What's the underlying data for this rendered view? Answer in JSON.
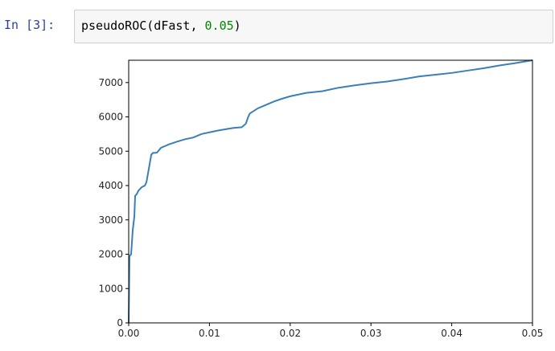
{
  "cell": {
    "prompt": "In [3]:",
    "code_func": "pseudoROC(dFast, ",
    "code_num": "0.05",
    "code_close": ")"
  },
  "chart_data": {
    "type": "line",
    "title": "",
    "xlabel": "",
    "ylabel": "",
    "xlim": [
      0,
      0.05
    ],
    "ylim": [
      0,
      7650
    ],
    "grid": false,
    "line_color": "#3a7fb8",
    "x_ticks": [
      0,
      0.01,
      0.02,
      0.03,
      0.04,
      0.05
    ],
    "x_tick_labels": [
      "0.00",
      "0.01",
      "0.02",
      "0.03",
      "0.04",
      "0.05"
    ],
    "y_ticks": [
      0,
      1000,
      2000,
      3000,
      4000,
      5000,
      6000,
      7000
    ],
    "y_tick_labels": [
      "0",
      "1000",
      "2000",
      "3000",
      "4000",
      "5000",
      "6000",
      "7000"
    ],
    "series": [
      {
        "x": [
          0,
          0.0001,
          0.0002,
          0.0003,
          0.0005,
          0.0007,
          0.0008,
          0.001,
          0.0012,
          0.0014,
          0.0016,
          0.002,
          0.0022,
          0.0025,
          0.0028,
          0.003,
          0.0032,
          0.0035,
          0.004,
          0.0045,
          0.005,
          0.006,
          0.007,
          0.008,
          0.009,
          0.01,
          0.011,
          0.012,
          0.013,
          0.014,
          0.0145,
          0.0148,
          0.015,
          0.016,
          0.017,
          0.018,
          0.019,
          0.02,
          0.022,
          0.024,
          0.026,
          0.028,
          0.03,
          0.032,
          0.034,
          0.036,
          0.038,
          0.04,
          0.042,
          0.044,
          0.046,
          0.048,
          0.05
        ],
        "y": [
          0,
          1950,
          1970,
          2000,
          2700,
          3100,
          3700,
          3750,
          3850,
          3900,
          3950,
          4000,
          4100,
          4500,
          4900,
          4950,
          4950,
          4960,
          5100,
          5150,
          5200,
          5280,
          5350,
          5400,
          5500,
          5550,
          5600,
          5640,
          5680,
          5700,
          5800,
          6000,
          6100,
          6250,
          6350,
          6450,
          6530,
          6600,
          6700,
          6750,
          6850,
          6920,
          6980,
          7030,
          7100,
          7180,
          7230,
          7280,
          7350,
          7420,
          7500,
          7570,
          7650
        ]
      }
    ]
  }
}
